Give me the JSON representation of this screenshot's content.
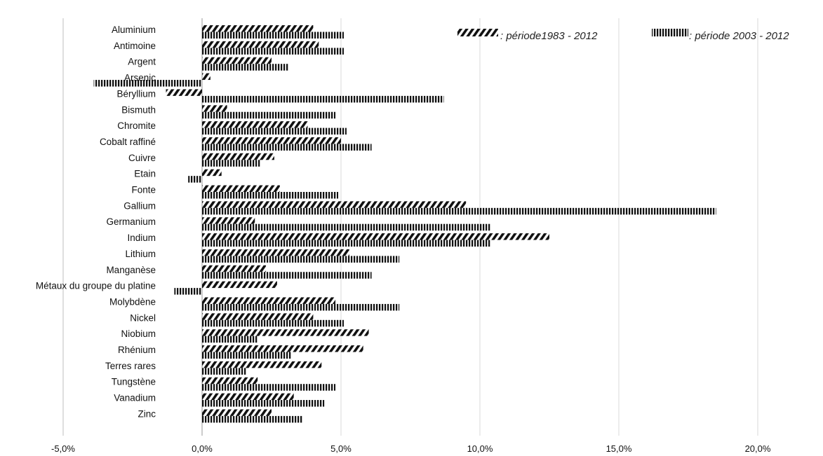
{
  "chart_data": {
    "type": "bar",
    "orientation": "horizontal",
    "categories": [
      "Aluminium",
      "Antimoine",
      "Argent",
      "Arsenic",
      "Béryllium",
      "Bismuth",
      "Chromite",
      "Cobalt raffiné",
      "Cuivre",
      "Etain",
      "Fonte",
      "Gallium",
      "Germanium",
      "Indium",
      "Lithium",
      "Manganèse",
      "Métaux du groupe du platine",
      "Molybdène",
      "Nickel",
      "Niobium",
      "Rhénium",
      "Terres rares",
      "Tungstène",
      "Vanadium",
      "Zinc"
    ],
    "series": [
      {
        "name": ": période1983 - 2012",
        "pattern": "diagonal-hatch",
        "values": [
          4.0,
          4.2,
          2.5,
          0.3,
          -1.3,
          0.9,
          3.8,
          5.0,
          2.6,
          0.7,
          2.8,
          9.5,
          1.9,
          12.5,
          5.3,
          2.3,
          2.7,
          4.8,
          4.0,
          6.0,
          5.8,
          4.3,
          2.0,
          3.3,
          2.5
        ]
      },
      {
        "name": ": période 2003 - 2012",
        "pattern": "vertical-hatch",
        "values": [
          5.1,
          5.1,
          3.1,
          -3.9,
          8.7,
          4.8,
          5.2,
          6.1,
          2.1,
          -0.5,
          4.9,
          18.5,
          10.4,
          10.4,
          7.1,
          6.1,
          -1.0,
          7.1,
          5.1,
          2.0,
          3.2,
          1.6,
          4.8,
          4.4,
          3.6
        ]
      }
    ],
    "xlim": [
      -5.0,
      20.0
    ],
    "x_ticks": [
      -5,
      0,
      5,
      10,
      15,
      20
    ],
    "x_tick_labels": [
      "-5,0%",
      "0,0%",
      "5,0%",
      "10,0%",
      "15,0%",
      "20,0%"
    ],
    "grid": "vertical",
    "legend": "top-right",
    "colors": {
      "bars": "#111111",
      "grid": "#d9d9d9",
      "axis": "#bfbfbf"
    }
  }
}
